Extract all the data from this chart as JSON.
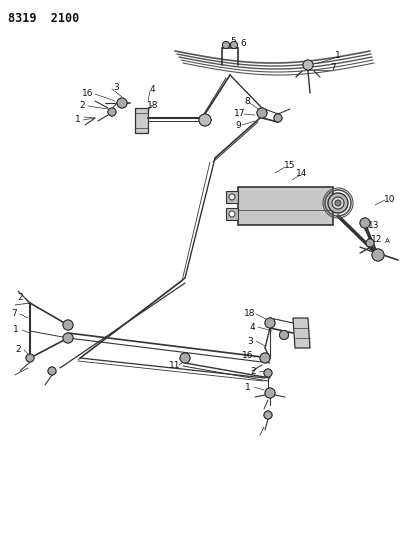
{
  "title": "8319  2100",
  "bg_color": "#ffffff",
  "line_color": "#333333",
  "text_color": "#111111",
  "fig_width": 4.08,
  "fig_height": 5.33,
  "fig_dpi": 100
}
